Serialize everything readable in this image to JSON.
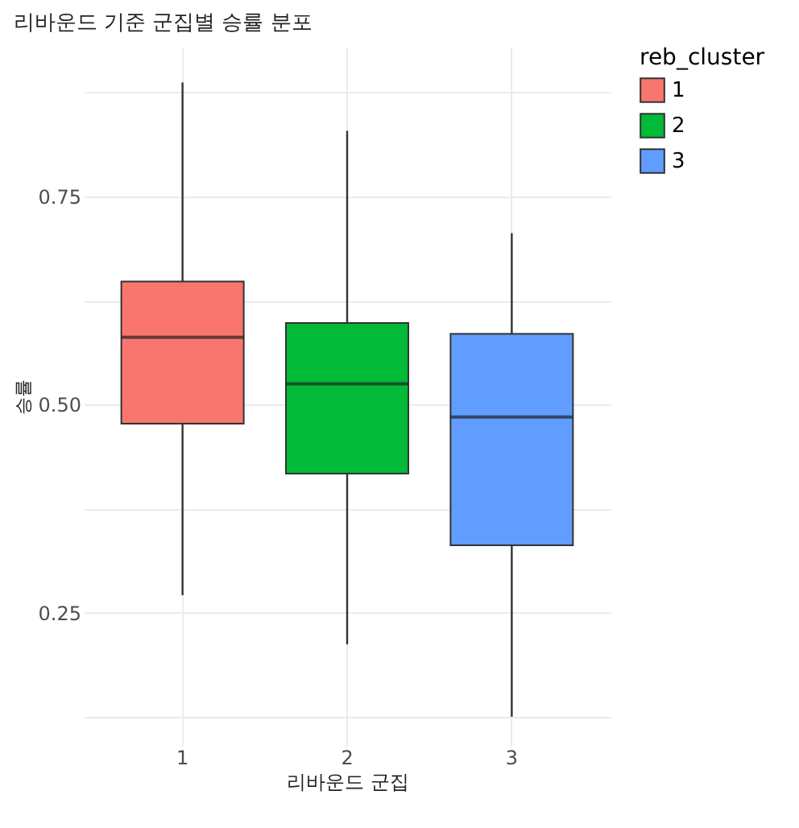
{
  "chart_data": {
    "type": "box",
    "title": "리바운드 기준 군집별 승률 분포",
    "xlabel": "리바운드 군집",
    "ylabel": "승률",
    "legend_title": "reb_cluster",
    "categories": [
      "1",
      "2",
      "3"
    ],
    "series": [
      {
        "name": "1",
        "color": "#f8766d",
        "boxes": [
          {
            "low": 0.271,
            "q1": 0.477,
            "median": 0.581,
            "q3": 0.648,
            "high": 0.887
          },
          null,
          null
        ]
      },
      {
        "name": "2",
        "color": "#00ba38",
        "boxes": [
          null,
          {
            "low": 0.212,
            "q1": 0.417,
            "median": 0.525,
            "q3": 0.598,
            "high": 0.829
          },
          null
        ]
      },
      {
        "name": "3",
        "color": "#619cff",
        "boxes": [
          null,
          null,
          {
            "low": 0.125,
            "q1": 0.331,
            "median": 0.485,
            "q3": 0.585,
            "high": 0.706
          }
        ]
      }
    ],
    "ylim": [
      0.09,
      0.93
    ],
    "yticks": [
      {
        "value": 0.125,
        "label": null
      },
      0.25,
      {
        "value": 0.375,
        "label": null
      },
      {
        "value": 0.5,
        "label": "0.50"
      },
      {
        "value": 0.625,
        "label": null
      },
      0.75,
      {
        "value": 0.875,
        "label": null
      }
    ],
    "grid": true,
    "legend": "right"
  }
}
